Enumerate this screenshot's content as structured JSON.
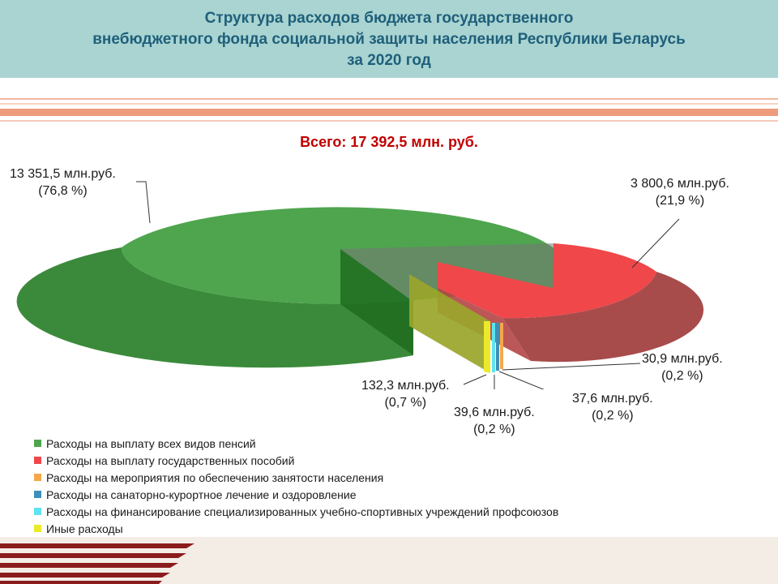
{
  "header": {
    "title_lines": [
      "Структура  расходов бюджета государственного",
      "внебюджетного фонда социальной защиты населения Республики Беларусь",
      "за 2020 год"
    ]
  },
  "total_label": "Всего: 17 392,5 млн. руб.",
  "colors": {
    "header_bg": "#a9d4d2",
    "title_text": "#1f5f7a",
    "total_text": "#c00000",
    "stripe": "#e87a50"
  },
  "chart_data": {
    "type": "pie",
    "style": "3d-exploded",
    "title": "Всего: 17 392,5 млн. руб.",
    "unit": "млн.руб.",
    "total": 17392.5,
    "series": [
      {
        "name": "Расходы на выплату всех видов пенсий",
        "value": 13351.5,
        "percent": 76.8,
        "value_label": "13 351,5 млн.руб.",
        "percent_label": "(76,8 %)",
        "color": "#4ea54e"
      },
      {
        "name": "Расходы на выплату государственных пособий",
        "value": 3800.6,
        "percent": 21.9,
        "value_label": "3 800,6 млн.руб.",
        "percent_label": "(21,9 %)",
        "color": "#f0474a"
      },
      {
        "name": "Расходы на мероприятия по обеспечению занятости населения",
        "value": 30.9,
        "percent": 0.2,
        "value_label": "30,9 млн.руб.",
        "percent_label": "(0,2 %)",
        "color": "#f5a84a"
      },
      {
        "name": "Расходы на санаторно-курортное лечение  и оздоровление",
        "value": 37.6,
        "percent": 0.2,
        "value_label": "37,6 млн.руб.",
        "percent_label": "(0,2 %)",
        "color": "#3d8fb8"
      },
      {
        "name": "Расходы на финансирование  специализированных  учебно-спортивных  учреждений  профсоюзов",
        "value": 39.6,
        "percent": 0.2,
        "value_label": "39,6 млн.руб.",
        "percent_label": "(0,2 %)",
        "color": "#5fe3ef"
      },
      {
        "name": "Иные расходы",
        "value": 132.3,
        "percent": 0.7,
        "value_label": "132,3 млн.руб.",
        "percent_label": "(0,7 %)",
        "color": "#eaea2a"
      }
    ],
    "legend_position": "bottom-left"
  }
}
